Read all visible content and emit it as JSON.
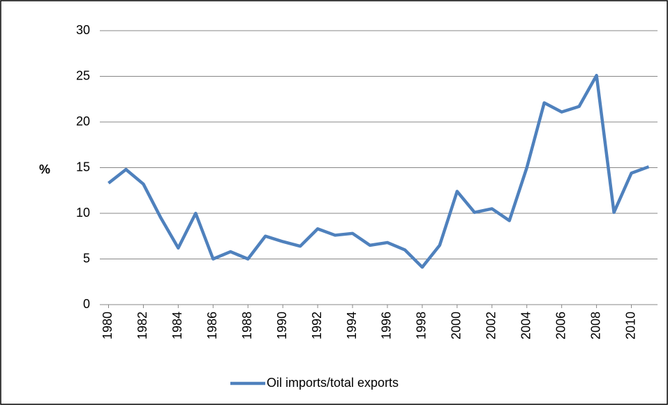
{
  "chart_data": {
    "type": "line",
    "y_label": "%",
    "x": [
      1980,
      1981,
      1982,
      1983,
      1984,
      1985,
      1986,
      1987,
      1988,
      1989,
      1990,
      1991,
      1992,
      1993,
      1994,
      1995,
      1996,
      1997,
      1998,
      1999,
      2000,
      2001,
      2002,
      2003,
      2004,
      2005,
      2006,
      2007,
      2008,
      2009,
      2010,
      2011
    ],
    "series": [
      {
        "name": "Oil imports/total exports",
        "color": "#4f81bd",
        "values": [
          13.3,
          14.8,
          13.2,
          9.5,
          6.2,
          10.0,
          5.0,
          5.8,
          5.0,
          7.5,
          6.9,
          6.4,
          8.3,
          7.6,
          7.8,
          6.5,
          6.8,
          6.0,
          4.1,
          6.5,
          12.4,
          10.1,
          10.5,
          9.2,
          15.0,
          22.1,
          21.1,
          21.7,
          25.1,
          10.1,
          14.4,
          15.1
        ]
      }
    ],
    "xlim": [
      1979.5,
      2011.5
    ],
    "xticks": [
      1980,
      1982,
      1984,
      1986,
      1988,
      1990,
      1992,
      1994,
      1996,
      1998,
      2000,
      2002,
      2004,
      2006,
      2008,
      2010
    ],
    "ylim": [
      0,
      30
    ],
    "yticks": [
      0,
      5,
      10,
      15,
      20,
      25,
      30
    ],
    "grid": true,
    "legend": "bottom"
  }
}
